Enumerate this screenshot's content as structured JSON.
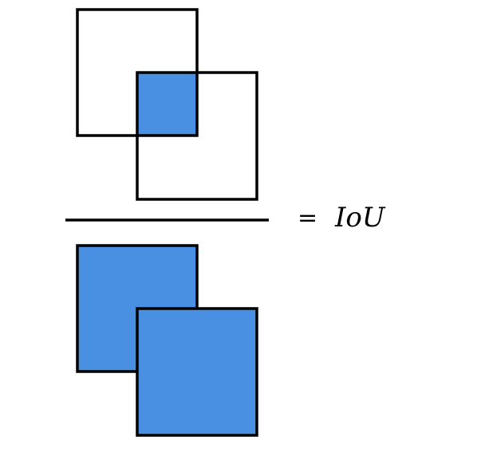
{
  "equation": {
    "equals": "=",
    "label": "IoU"
  },
  "colors": {
    "fill": "#4a90e2",
    "stroke": "#000000",
    "background": "#ffffff"
  },
  "numerator": {
    "description_name": "intersection",
    "box_a_filled": false,
    "box_b_filled": false,
    "overlap_filled": true
  },
  "denominator": {
    "description_name": "union",
    "box_a_filled": true,
    "box_b_filled": true
  }
}
